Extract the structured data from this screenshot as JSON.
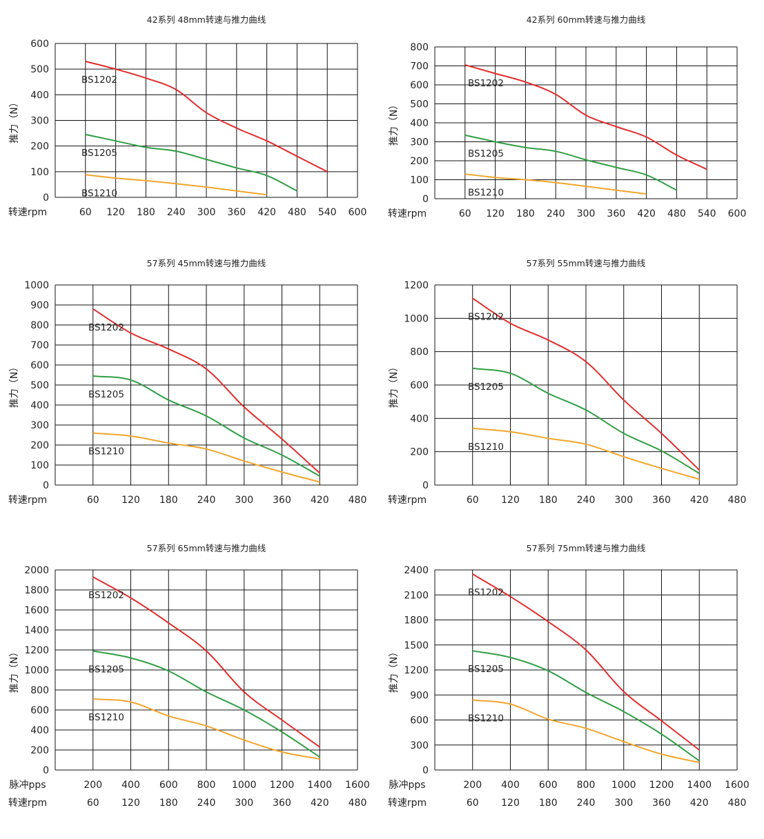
{
  "colors": {
    "BS1202": "#e22c2c",
    "BS1205": "#2f9e44",
    "BS1210": "#f2a52b",
    "grid": "#111111"
  },
  "chart_data": [
    {
      "type": "line",
      "title": "42系列 48mm转速与推力曲线",
      "ylabel": "推力（N）",
      "ylim": [
        0,
        600
      ],
      "yticks": [
        "0",
        "100",
        "200",
        "300",
        "400",
        "500",
        "600"
      ],
      "xlim": [
        0,
        600
      ],
      "x_axes": [
        {
          "label": "转速rpm",
          "ticks": [
            "60",
            "120",
            "180",
            "240",
            "300",
            "360",
            "420",
            "480",
            "540",
            "600"
          ]
        }
      ],
      "series": [
        {
          "name": "BS1202",
          "x": [
            60,
            120,
            180,
            240,
            300,
            360,
            420,
            480,
            540
          ],
          "values": [
            530,
            500,
            465,
            420,
            330,
            270,
            220,
            160,
            100
          ]
        },
        {
          "name": "BS1205",
          "x": [
            60,
            120,
            180,
            240,
            300,
            360,
            420,
            480
          ],
          "values": [
            245,
            220,
            195,
            180,
            148,
            115,
            85,
            25
          ]
        },
        {
          "name": "BS1210",
          "x": [
            60,
            120,
            180,
            240,
            300,
            360,
            420
          ],
          "values": [
            88,
            75,
            65,
            53,
            40,
            25,
            10
          ]
        }
      ]
    },
    {
      "type": "line",
      "title": "42系列 60mm转速与推力曲线",
      "ylabel": "推力（N）",
      "ylim": [
        0,
        800
      ],
      "yticks": [
        "0",
        "100",
        "200",
        "300",
        "400",
        "500",
        "600",
        "700",
        "800"
      ],
      "xlim": [
        0,
        600
      ],
      "x_axes": [
        {
          "label": "转速rpm",
          "ticks": [
            "60",
            "120",
            "180",
            "240",
            "300",
            "360",
            "420",
            "480",
            "540",
            "600"
          ]
        }
      ],
      "series": [
        {
          "name": "BS1202",
          "x": [
            60,
            120,
            180,
            240,
            300,
            360,
            420,
            480,
            540
          ],
          "values": [
            705,
            660,
            615,
            550,
            440,
            380,
            325,
            230,
            155
          ]
        },
        {
          "name": "BS1205",
          "x": [
            60,
            120,
            180,
            240,
            300,
            360,
            420,
            480
          ],
          "values": [
            335,
            300,
            270,
            250,
            205,
            165,
            125,
            45
          ]
        },
        {
          "name": "BS1210",
          "x": [
            60,
            120,
            180,
            240,
            300,
            360,
            420
          ],
          "values": [
            130,
            112,
            100,
            85,
            65,
            45,
            25
          ]
        }
      ]
    },
    {
      "type": "line",
      "title": "57系列 45mm转速与推力曲线",
      "ylabel": "推力（N）",
      "ylim": [
        0,
        1000
      ],
      "yticks": [
        "0",
        "100",
        "200",
        "300",
        "400",
        "500",
        "600",
        "700",
        "800",
        "900",
        "1000"
      ],
      "xlim": [
        0,
        480
      ],
      "x_axes": [
        {
          "label": "转速rpm",
          "ticks": [
            "60",
            "120",
            "180",
            "240",
            "300",
            "360",
            "420",
            "480"
          ]
        }
      ],
      "series": [
        {
          "name": "BS1202",
          "x": [
            60,
            120,
            180,
            240,
            300,
            360,
            420
          ],
          "values": [
            880,
            760,
            680,
            580,
            390,
            230,
            60
          ]
        },
        {
          "name": "BS1205",
          "x": [
            60,
            120,
            180,
            240,
            300,
            360,
            420
          ],
          "values": [
            545,
            525,
            425,
            345,
            235,
            150,
            45
          ]
        },
        {
          "name": "BS1210",
          "x": [
            60,
            120,
            180,
            240,
            300,
            360,
            420
          ],
          "values": [
            260,
            245,
            210,
            180,
            120,
            65,
            15
          ]
        }
      ]
    },
    {
      "type": "line",
      "title": "57系列 55mm转速与推力曲线",
      "ylabel": "推力（N）",
      "ylim": [
        0,
        1200
      ],
      "yticks": [
        "0",
        "200",
        "400",
        "600",
        "800",
        "1000",
        "1200"
      ],
      "xlim": [
        0,
        480
      ],
      "x_axes": [
        {
          "label": "转速rpm",
          "ticks": [
            "60",
            "120",
            "180",
            "240",
            "300",
            "360",
            "420",
            "480"
          ]
        }
      ],
      "series": [
        {
          "name": "BS1202",
          "x": [
            60,
            120,
            180,
            240,
            300,
            360,
            420
          ],
          "values": [
            1120,
            970,
            870,
            740,
            510,
            310,
            90
          ]
        },
        {
          "name": "BS1205",
          "x": [
            60,
            120,
            180,
            240,
            300,
            360,
            420
          ],
          "values": [
            700,
            670,
            550,
            450,
            310,
            205,
            70
          ]
        },
        {
          "name": "BS1210",
          "x": [
            60,
            120,
            180,
            240,
            300,
            360,
            420
          ],
          "values": [
            340,
            320,
            280,
            245,
            170,
            100,
            35
          ]
        }
      ]
    },
    {
      "type": "line",
      "title": "57系列 65mm转速与推力曲线",
      "ylabel": "推力（N）",
      "ylim": [
        0,
        2000
      ],
      "yticks": [
        "0",
        "200",
        "400",
        "600",
        "800",
        "1000",
        "1200",
        "1400",
        "1600",
        "1800",
        "2000"
      ],
      "xlim": [
        0,
        480
      ],
      "x_axes": [
        {
          "label": "脉冲pps",
          "ticks": [
            "200",
            "400",
            "600",
            "800",
            "1000",
            "1200",
            "1400",
            "1600"
          ]
        },
        {
          "label": "转速rpm",
          "ticks": [
            "60",
            "120",
            "180",
            "240",
            "300",
            "360",
            "420",
            "480"
          ]
        }
      ],
      "series": [
        {
          "name": "BS1202",
          "x": [
            60,
            120,
            180,
            240,
            300,
            360,
            420
          ],
          "values": [
            1930,
            1720,
            1470,
            1190,
            780,
            500,
            230
          ]
        },
        {
          "name": "BS1205",
          "x": [
            60,
            120,
            180,
            240,
            300,
            360,
            420
          ],
          "values": [
            1190,
            1120,
            990,
            780,
            600,
            380,
            130
          ]
        },
        {
          "name": "BS1210",
          "x": [
            60,
            120,
            180,
            240,
            300,
            360,
            420
          ],
          "values": [
            710,
            680,
            540,
            440,
            300,
            180,
            110
          ]
        }
      ]
    },
    {
      "type": "line",
      "title": "57系列 75mm转速与推力曲线",
      "ylabel": "推力（N）",
      "ylim": [
        0,
        2400
      ],
      "yticks": [
        "0",
        "300",
        "600",
        "900",
        "1200",
        "1500",
        "1800",
        "2100",
        "2400"
      ],
      "xlim": [
        0,
        480
      ],
      "x_axes": [
        {
          "label": "脉冲pps",
          "ticks": [
            "200",
            "400",
            "600",
            "800",
            "1000",
            "1200",
            "1400",
            "1600"
          ]
        },
        {
          "label": "转速rpm",
          "ticks": [
            "60",
            "120",
            "180",
            "240",
            "300",
            "360",
            "420",
            "480"
          ]
        }
      ],
      "series": [
        {
          "name": "BS1202",
          "x": [
            60,
            120,
            180,
            240,
            300,
            360,
            420
          ],
          "values": [
            2350,
            2080,
            1780,
            1440,
            940,
            590,
            240
          ]
        },
        {
          "name": "BS1205",
          "x": [
            60,
            120,
            180,
            240,
            300,
            360,
            420
          ],
          "values": [
            1430,
            1350,
            1190,
            930,
            700,
            430,
            110
          ]
        },
        {
          "name": "BS1210",
          "x": [
            60,
            120,
            180,
            240,
            300,
            360,
            420
          ],
          "values": [
            840,
            790,
            610,
            500,
            340,
            190,
            90
          ]
        }
      ]
    }
  ]
}
